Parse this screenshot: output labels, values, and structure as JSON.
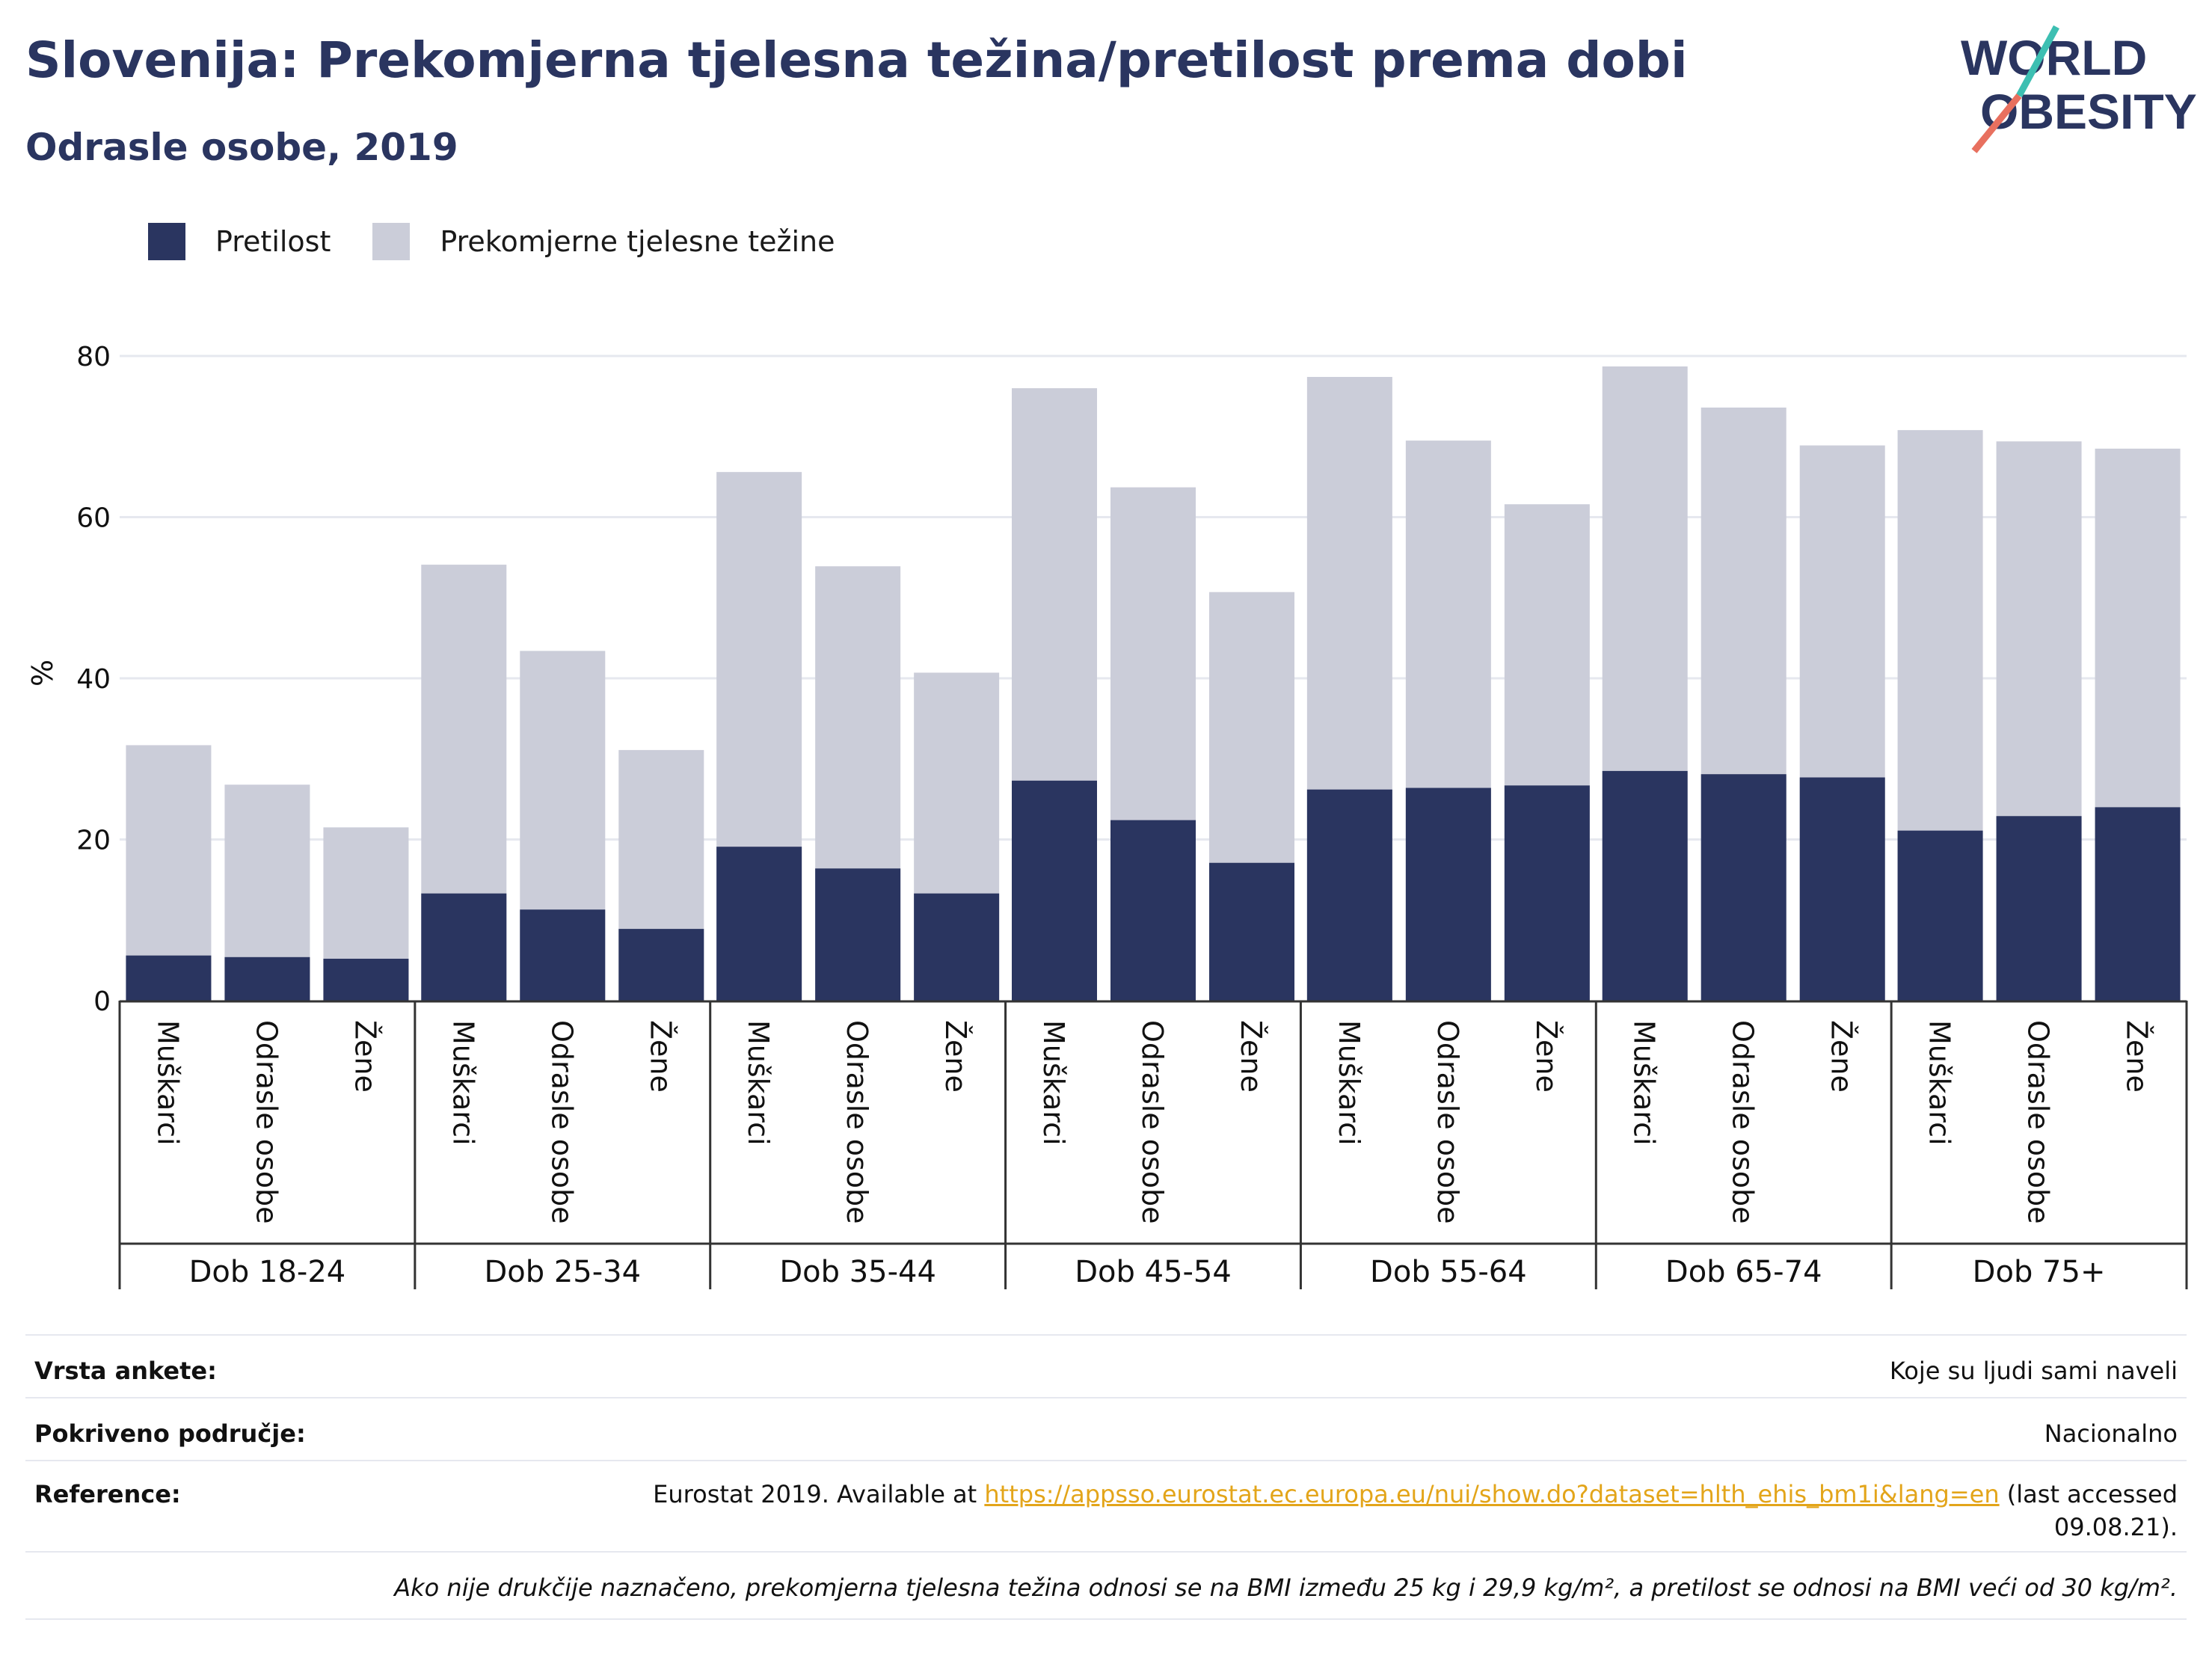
{
  "header": {
    "title": "Slovenija: Prekomjerna tjelesna težina/pretilost prema dobi",
    "subtitle": "Odrasle osobe, 2019"
  },
  "logo": {
    "line1": "WORLD",
    "line2": "OBESITY"
  },
  "legend": [
    {
      "label": "Pretilost",
      "color": "#2a3560"
    },
    {
      "label": "Prekomjerne tjelesne težine",
      "color": "#cbcdd9"
    }
  ],
  "chart_data": {
    "type": "bar",
    "stacked": false,
    "overlaid": true,
    "ylabel": "%",
    "ylim": [
      0,
      85
    ],
    "yticks": [
      0,
      20,
      40,
      60,
      80
    ],
    "grid": true,
    "groups": [
      {
        "label": "Dob 18-24",
        "categories": [
          "Muškarci",
          "Odrasle osobe",
          "Žene"
        ]
      },
      {
        "label": "Dob 25-34",
        "categories": [
          "Muškarci",
          "Odrasle osobe",
          "Žene"
        ]
      },
      {
        "label": "Dob 35-44",
        "categories": [
          "Muškarci",
          "Odrasle osobe",
          "Žene"
        ]
      },
      {
        "label": "Dob 45-54",
        "categories": [
          "Muškarci",
          "Odrasle osobe",
          "Žene"
        ]
      },
      {
        "label": "Dob 55-64",
        "categories": [
          "Muškarci",
          "Odrasle osobe",
          "Žene"
        ]
      },
      {
        "label": "Dob 65-74",
        "categories": [
          "Muškarci",
          "Odrasle osobe",
          "Žene"
        ]
      },
      {
        "label": "Dob 75+",
        "categories": [
          "Muškarci",
          "Odrasle osobe",
          "Žene"
        ]
      }
    ],
    "series": [
      {
        "name": "Prekomjerne tjelesne težine",
        "color": "#cbcdd9",
        "values": [
          31.7,
          26.8,
          21.5,
          54.1,
          43.4,
          31.1,
          65.6,
          53.9,
          40.7,
          76.0,
          63.7,
          50.7,
          77.4,
          69.5,
          61.6,
          78.7,
          73.6,
          68.9,
          70.8,
          69.4,
          68.5
        ]
      },
      {
        "name": "Pretilost",
        "color": "#2a3560",
        "values": [
          5.6,
          5.4,
          5.2,
          13.3,
          11.3,
          8.9,
          19.1,
          16.4,
          13.3,
          27.3,
          22.4,
          17.1,
          26.2,
          26.4,
          26.7,
          28.5,
          28.1,
          27.7,
          21.1,
          22.9,
          24.0
        ]
      }
    ]
  },
  "info": {
    "survey_label": "Vrsta ankete:",
    "survey_value": "Koje su ljudi sami naveli",
    "coverage_label": "Pokriveno područje:",
    "coverage_value": "Nacionalno",
    "reference_label": "Reference:",
    "reference_prefix": "Eurostat 2019. Available at ",
    "reference_link": "https://appsso.eurostat.ec.europa.eu/nui/show.do?dataset=hlth_ehis_bm1i&lang=en",
    "reference_suffix": " (last accessed",
    "reference_date": "09.08.21).",
    "footnote": "Ako nije drukčije naznačeno, prekomjerna tjelesna težina odnosi se na BMI između 25 kg i 29,9 kg/m², a pretilost se odnosi na BMI veći od 30 kg/m²."
  }
}
